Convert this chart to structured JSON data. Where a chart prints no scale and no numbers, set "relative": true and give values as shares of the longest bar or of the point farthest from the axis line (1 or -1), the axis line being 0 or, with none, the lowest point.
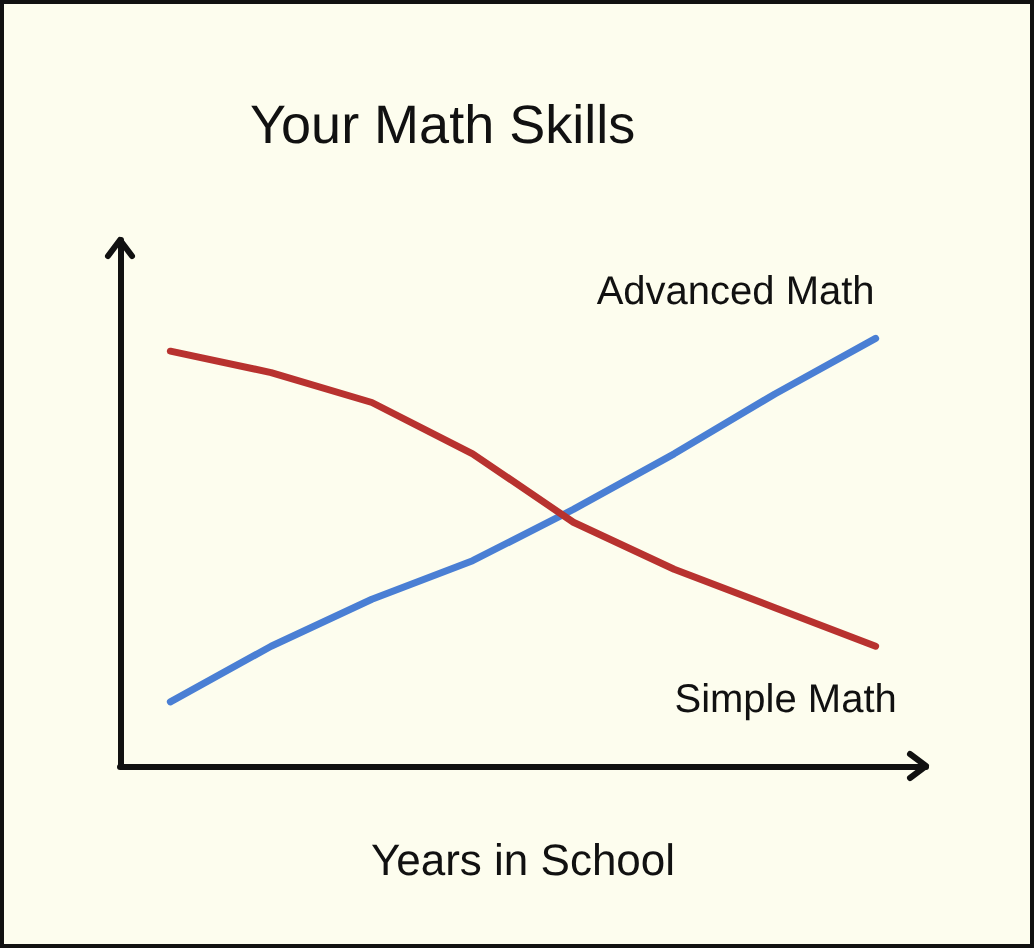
{
  "chart_data": {
    "type": "line",
    "title": "Your Math Skills",
    "xlabel": "Years in School",
    "relative": true,
    "categories": [
      null,
      null,
      null,
      null,
      null,
      null,
      null,
      null
    ],
    "series": [
      {
        "name": "Advanced Math",
        "color": "#4a7fd4",
        "values": [
          0.15,
          0.28,
          0.39,
          0.48,
          0.6,
          0.73,
          0.87,
          1.0
        ]
      },
      {
        "name": "Simple Math",
        "color": "#b8322f",
        "values": [
          0.97,
          0.92,
          0.85,
          0.73,
          0.57,
          0.46,
          0.37,
          0.28
        ]
      }
    ],
    "grid": false,
    "legend": false,
    "marker": "none",
    "line_style": "solid"
  }
}
